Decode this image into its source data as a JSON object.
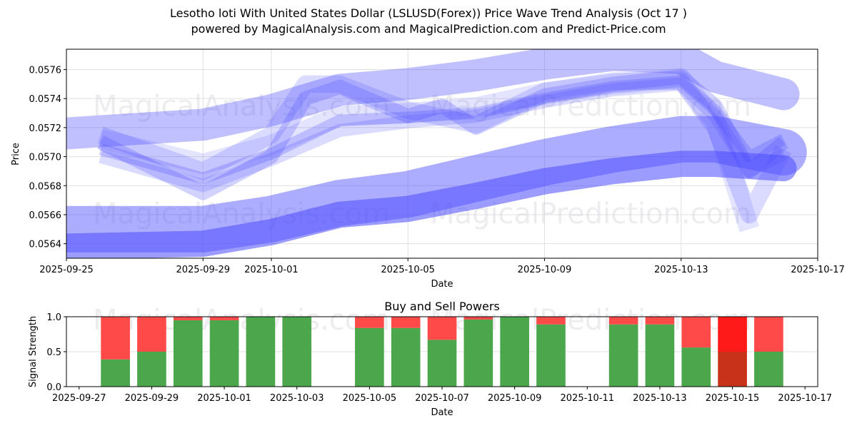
{
  "header": {
    "title": "Lesotho loti With United States Dollar (LSLUSD(Forex)) Price Wave Trend Analysis (Oct 17 )",
    "subtitle": "powered by MagicalAnalysis.com and MagicalPrediction.com and Predict-Price.com"
  },
  "watermarks": [
    "MagicalAnalysis.com",
    "MagicalPrediction.com"
  ],
  "colors": {
    "band": "#4a4aff",
    "buy": "#4ca64c",
    "sell": "#ff4a4a",
    "sell_strong": "#ff1a1a",
    "buy_weak": "#c8321a",
    "grid": "#e0e0e0"
  },
  "chart_data": [
    {
      "type": "area",
      "title": "",
      "xlabel": "Date",
      "ylabel": "Price",
      "xlim": [
        "2025-09-25",
        "2025-10-17"
      ],
      "ylim": [
        0.0563,
        0.05774
      ],
      "x_ticks": [
        "2025-09-25",
        "2025-09-29",
        "2025-10-01",
        "2025-10-05",
        "2025-10-09",
        "2025-10-13",
        "2025-10-17"
      ],
      "y_ticks": [
        0.0564,
        0.0566,
        0.0568,
        0.057,
        0.0572,
        0.0574,
        0.0576
      ],
      "y_tick_labels": [
        "0.0564",
        "0.0566",
        "0.0568",
        "0.0570",
        "0.0572",
        "0.0574",
        "0.0576"
      ],
      "grid": true,
      "series": [
        {
          "name": "wave-upper-wide",
          "opacity": 0.35,
          "width": 0.00022,
          "x": [
            "2025-09-25",
            "2025-09-29",
            "2025-10-01",
            "2025-10-03",
            "2025-10-05",
            "2025-10-07",
            "2025-10-09",
            "2025-10-11",
            "2025-10-13",
            "2025-10-14",
            "2025-10-16"
          ],
          "y": [
            0.05716,
            0.05722,
            0.05732,
            0.05746,
            0.0575,
            0.05756,
            0.05764,
            0.0577,
            0.05768,
            0.05755,
            0.05743
          ]
        },
        {
          "name": "wave-upper-1",
          "opacity": 0.25,
          "width": 8e-05,
          "x": [
            "2025-09-26",
            "2025-09-29",
            "2025-10-01",
            "2025-10-03",
            "2025-10-05",
            "2025-10-07",
            "2025-10-09",
            "2025-10-11",
            "2025-10-13",
            "2025-10-14",
            "2025-10-15",
            "2025-10-16"
          ],
          "y": [
            0.05705,
            0.05685,
            0.05702,
            0.05725,
            0.05727,
            0.0573,
            0.0574,
            0.05748,
            0.05752,
            0.05732,
            0.057,
            0.05712
          ]
        },
        {
          "name": "wave-upper-2",
          "opacity": 0.25,
          "width": 0.0001,
          "x": [
            "2025-09-26",
            "2025-09-29",
            "2025-10-01",
            "2025-10-02",
            "2025-10-03",
            "2025-10-05",
            "2025-10-06",
            "2025-10-07",
            "2025-10-09",
            "2025-10-11",
            "2025-10-13",
            "2025-10-14",
            "2025-10-15",
            "2025-10-16"
          ],
          "y": [
            0.0571,
            0.05675,
            0.057,
            0.0574,
            0.05748,
            0.05728,
            0.05735,
            0.0572,
            0.05742,
            0.0575,
            0.05755,
            0.05735,
            0.0569,
            0.0571
          ]
        },
        {
          "name": "wave-upper-3",
          "opacity": 0.2,
          "width": 0.00012,
          "x": [
            "2025-09-26",
            "2025-09-29",
            "2025-10-01",
            "2025-10-02",
            "2025-10-03",
            "2025-10-05",
            "2025-10-07",
            "2025-10-09",
            "2025-10-11",
            "2025-10-13",
            "2025-10-14",
            "2025-10-15",
            "2025-10-16"
          ],
          "y": [
            0.05715,
            0.0569,
            0.05715,
            0.0575,
            0.0575,
            0.05732,
            0.05722,
            0.05745,
            0.05752,
            0.05752,
            0.0572,
            0.0566,
            0.05705
          ]
        },
        {
          "name": "wave-upper-4",
          "opacity": 0.2,
          "width": 9e-05,
          "x": [
            "2025-09-26",
            "2025-09-29",
            "2025-10-01",
            "2025-10-03",
            "2025-10-05",
            "2025-10-07",
            "2025-10-09",
            "2025-10-11",
            "2025-10-13",
            "2025-10-14",
            "2025-10-15",
            "2025-10-16"
          ],
          "y": [
            0.057,
            0.0568,
            0.05698,
            0.05718,
            0.05724,
            0.05728,
            0.05738,
            0.05746,
            0.0575,
            0.05728,
            0.0569,
            0.05702
          ]
        },
        {
          "name": "wave-upper-5",
          "opacity": 0.15,
          "width": 0.00014,
          "x": [
            "2025-09-26",
            "2025-09-29",
            "2025-10-01",
            "2025-10-03",
            "2025-10-05",
            "2025-10-07",
            "2025-10-09",
            "2025-10-11",
            "2025-10-13",
            "2025-10-14",
            "2025-10-15"
          ],
          "y": [
            0.05712,
            0.05695,
            0.05708,
            0.05728,
            0.0573,
            0.05734,
            0.05744,
            0.0575,
            0.05754,
            0.05725,
            0.0565
          ]
        },
        {
          "name": "wave-lower-wide",
          "opacity": 0.45,
          "width": 0.00032,
          "x": [
            "2025-09-25",
            "2025-09-29",
            "2025-10-01",
            "2025-10-03",
            "2025-10-05",
            "2025-10-07",
            "2025-10-09",
            "2025-10-11",
            "2025-10-13",
            "2025-10-14",
            "2025-10-16"
          ],
          "y": [
            0.0565,
            0.0565,
            0.05657,
            0.05668,
            0.05674,
            0.05685,
            0.05696,
            0.05705,
            0.05712,
            0.05712,
            0.05703
          ]
        },
        {
          "name": "wave-lower-core",
          "opacity": 0.55,
          "width": 0.00018,
          "x": [
            "2025-09-25",
            "2025-09-29",
            "2025-10-01",
            "2025-10-03",
            "2025-10-05",
            "2025-10-07",
            "2025-10-09",
            "2025-10-11",
            "2025-10-13",
            "2025-10-14",
            "2025-10-16"
          ],
          "y": [
            0.05638,
            0.0564,
            0.05648,
            0.0566,
            0.05664,
            0.05673,
            0.05683,
            0.0569,
            0.05695,
            0.05695,
            0.05692
          ]
        }
      ]
    },
    {
      "type": "bar",
      "title": "Buy and Sell Powers",
      "xlabel": "Date",
      "ylabel": "Signal Strength",
      "xlim": [
        "2025-09-26.65",
        "2025-10-17.35"
      ],
      "ylim": [
        0,
        1
      ],
      "x_ticks": [
        "2025-09-27",
        "2025-09-29",
        "2025-10-01",
        "2025-10-03",
        "2025-10-05",
        "2025-10-07",
        "2025-10-09",
        "2025-10-11",
        "2025-10-13",
        "2025-10-15",
        "2025-10-17"
      ],
      "y_ticks": [
        0.0,
        0.5,
        1.0
      ],
      "y_tick_labels": [
        "0.0",
        "0.5",
        "1.0"
      ],
      "grid": true,
      "categories": [
        "2025-09-28",
        "2025-09-29",
        "2025-09-30",
        "2025-10-01",
        "2025-10-02",
        "2025-10-03",
        "2025-10-05",
        "2025-10-06",
        "2025-10-07",
        "2025-10-08",
        "2025-10-09",
        "2025-10-10",
        "2025-10-12",
        "2025-10-13",
        "2025-10-14",
        "2025-10-15",
        "2025-10-16"
      ],
      "series": [
        {
          "name": "Buy",
          "values": [
            0.39,
            0.5,
            0.95,
            0.95,
            1.0,
            1.0,
            0.84,
            0.84,
            0.67,
            0.96,
            1.0,
            0.89,
            0.89,
            0.89,
            0.56,
            0.5,
            0.5
          ]
        },
        {
          "name": "Sell",
          "values": [
            0.61,
            0.5,
            0.05,
            0.05,
            0.0,
            0.0,
            0.16,
            0.16,
            0.33,
            0.04,
            0.0,
            0.11,
            0.11,
            0.11,
            0.44,
            0.5,
            0.5
          ]
        }
      ],
      "highlight": {
        "category": "2025-10-15",
        "note": "strong sell day drawn in darker colors"
      }
    }
  ]
}
